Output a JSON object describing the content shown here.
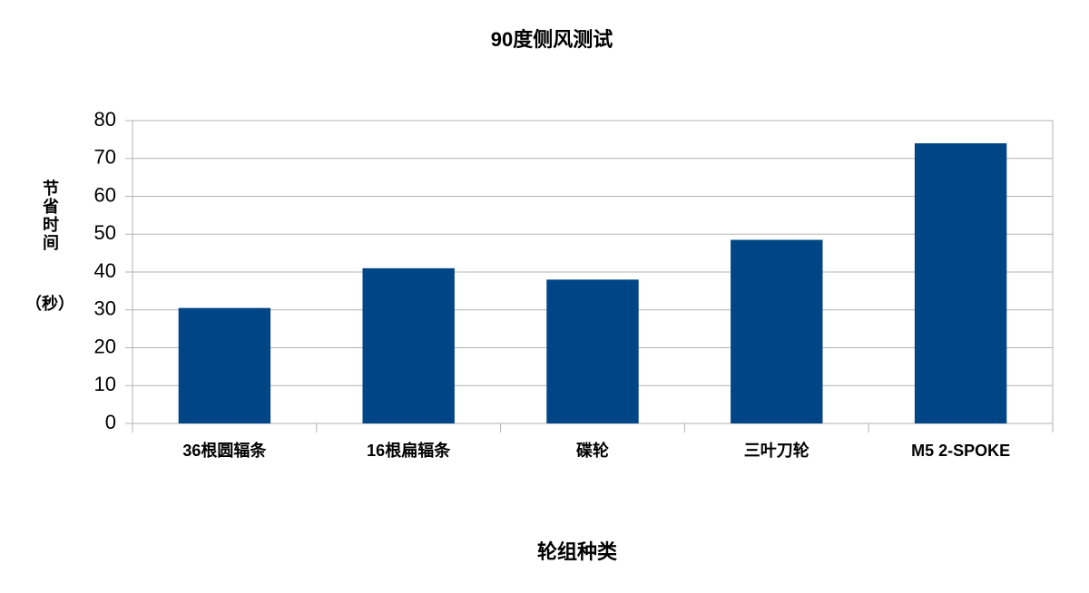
{
  "chart_data": {
    "type": "bar",
    "title": "90度侧风测试",
    "x_label": "轮组种类",
    "y_label": "节省时间",
    "y_label_unit": "（秒）",
    "categories": [
      "36根圆辐条",
      "16根扁辐条",
      "碟轮",
      "三叶刀轮",
      "M5 2-SPOKE"
    ],
    "values": [
      30.5,
      41,
      38,
      48.5,
      74
    ],
    "color": "#004586",
    "ylim": [
      0,
      80
    ],
    "yticks": [
      0,
      10,
      20,
      30,
      40,
      50,
      60,
      70,
      80
    ],
    "grid": true
  }
}
